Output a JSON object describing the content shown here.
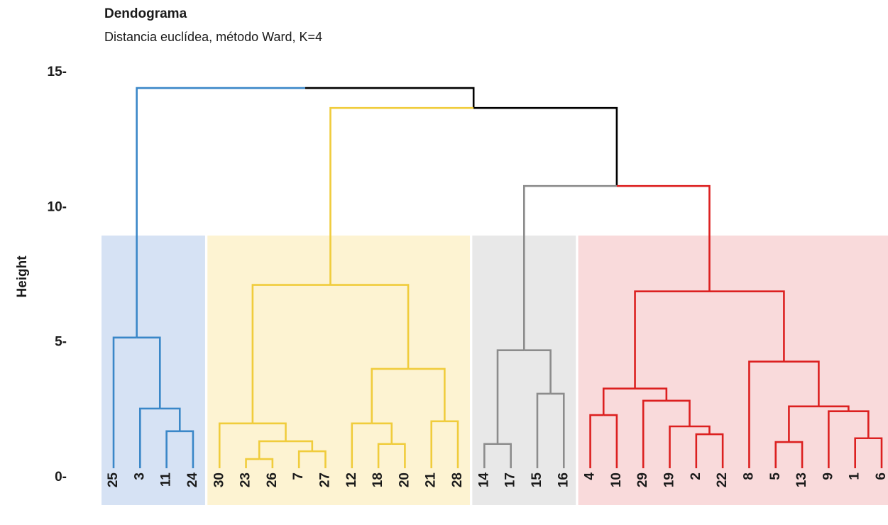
{
  "chart_data": {
    "type": "dendrogram",
    "title": "Dendograma",
    "subtitle": "Distancia euclídea, método Ward, K=4",
    "ylabel": "Height",
    "ylim": [
      0,
      15
    ],
    "yticks": [
      {
        "value": 0,
        "label": "0-"
      },
      {
        "value": 5,
        "label": "5-"
      },
      {
        "value": 10,
        "label": "10-"
      },
      {
        "value": 15,
        "label": "15-"
      }
    ],
    "tree": {
      "height": 14.5,
      "children": [
        {
          "color": "#3a87c8",
          "fill": "#d6e2f4",
          "height": 5.26,
          "children": [
            {
              "label": "25"
            },
            {
              "height": 2.63,
              "children": [
                {
                  "label": "3"
                },
                {
                  "height": 1.79,
                  "children": [
                    {
                      "label": "11"
                    },
                    {
                      "label": "24"
                    }
                  ]
                }
              ]
            }
          ]
        },
        {
          "height": 13.76,
          "children": [
            {
              "color": "#f0cc3c",
              "fill": "#fdf3d2",
              "height": 7.21,
              "children": [
                {
                  "height": 2.08,
                  "children": [
                    {
                      "label": "30"
                    },
                    {
                      "height": 1.42,
                      "children": [
                        {
                          "height": 0.76,
                          "children": [
                            {
                              "label": "23"
                            },
                            {
                              "label": "26"
                            }
                          ]
                        },
                        {
                          "height": 1.05,
                          "children": [
                            {
                              "label": "7"
                            },
                            {
                              "label": "27"
                            }
                          ]
                        }
                      ]
                    }
                  ]
                },
                {
                  "height": 4.1,
                  "children": [
                    {
                      "height": 2.08,
                      "children": [
                        {
                          "label": "12"
                        },
                        {
                          "height": 1.32,
                          "children": [
                            {
                              "label": "18"
                            },
                            {
                              "label": "20"
                            }
                          ]
                        }
                      ]
                    },
                    {
                      "height": 2.16,
                      "children": [
                        {
                          "label": "21"
                        },
                        {
                          "label": "28"
                        }
                      ]
                    }
                  ]
                }
              ]
            },
            {
              "height": 10.87,
              "children": [
                {
                  "color": "#8c8c8c",
                  "fill": "#e8e8e8",
                  "height": 4.79,
                  "children": [
                    {
                      "height": 1.32,
                      "children": [
                        {
                          "label": "14"
                        },
                        {
                          "label": "17"
                        }
                      ]
                    },
                    {
                      "height": 3.18,
                      "children": [
                        {
                          "label": "15"
                        },
                        {
                          "label": "16"
                        }
                      ]
                    }
                  ]
                },
                {
                  "color": "#dc2020",
                  "fill": "#f9dadb",
                  "height": 6.97,
                  "children": [
                    {
                      "height": 3.37,
                      "children": [
                        {
                          "height": 2.39,
                          "children": [
                            {
                              "label": "4"
                            },
                            {
                              "label": "10"
                            }
                          ]
                        },
                        {
                          "height": 2.92,
                          "children": [
                            {
                              "label": "29"
                            },
                            {
                              "height": 1.97,
                              "children": [
                                {
                                  "label": "19"
                                },
                                {
                                  "height": 1.68,
                                  "children": [
                                    {
                                      "label": "2"
                                    },
                                    {
                                      "label": "22"
                                    }
                                  ]
                                }
                              ]
                            }
                          ]
                        }
                      ]
                    },
                    {
                      "height": 4.37,
                      "children": [
                        {
                          "label": "8"
                        },
                        {
                          "height": 2.71,
                          "children": [
                            {
                              "height": 1.39,
                              "children": [
                                {
                                  "label": "5"
                                },
                                {
                                  "label": "13"
                                }
                              ]
                            },
                            {
                              "height": 2.53,
                              "children": [
                                {
                                  "label": "9"
                                },
                                {
                                  "height": 1.53,
                                  "children": [
                                    {
                                      "label": "1"
                                    },
                                    {
                                      "label": "6"
                                    }
                                  ]
                                }
                              ]
                            }
                          ]
                        }
                      ]
                    }
                  ]
                }
              ]
            }
          ]
        }
      ]
    }
  }
}
